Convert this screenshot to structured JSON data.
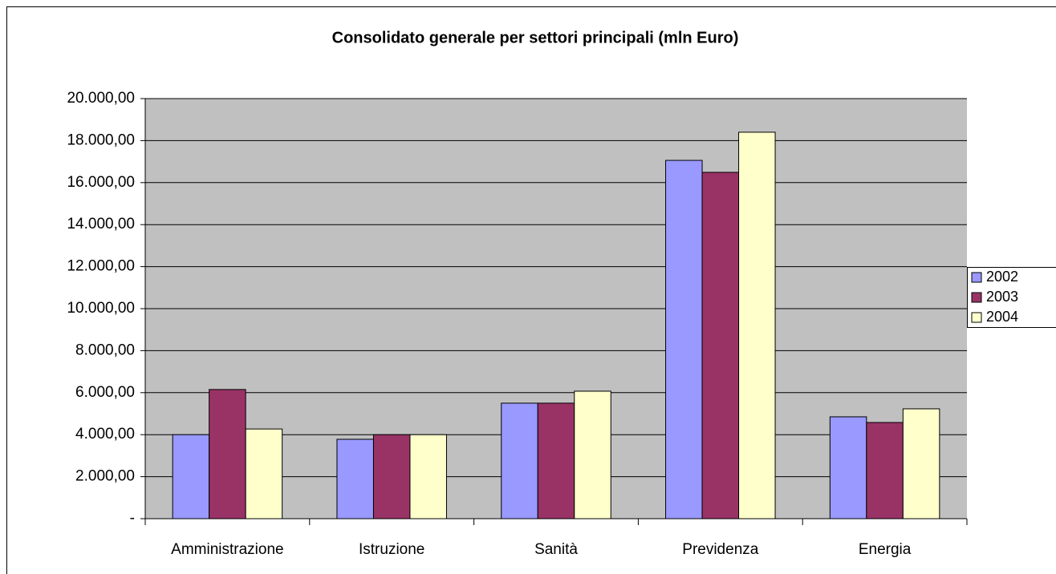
{
  "chart_data": {
    "type": "bar",
    "title": "Consolidato generale per settori principali (mln Euro)",
    "categories": [
      "Amministrazione",
      "Istruzione",
      "Sanità",
      "Previdenza",
      "Energia"
    ],
    "series": [
      {
        "name": "2002",
        "color": "#9999ff",
        "values": [
          4000,
          3780,
          5500,
          17060,
          4850
        ]
      },
      {
        "name": "2003",
        "color": "#993366",
        "values": [
          6150,
          4000,
          5500,
          16490,
          4580
        ]
      },
      {
        "name": "2004",
        "color": "#ffffcc",
        "values": [
          4270,
          4000,
          6070,
          18400,
          5230
        ]
      }
    ],
    "ylim": [
      0,
      20000
    ],
    "yticks": [
      {
        "value": 0,
        "label": "-"
      },
      {
        "value": 2000,
        "label": "2.000,00"
      },
      {
        "value": 4000,
        "label": "4.000,00"
      },
      {
        "value": 6000,
        "label": "6.000,00"
      },
      {
        "value": 8000,
        "label": "8.000,00"
      },
      {
        "value": 10000,
        "label": "10.000,00"
      },
      {
        "value": 12000,
        "label": "12.000,00"
      },
      {
        "value": 14000,
        "label": "14.000,00"
      },
      {
        "value": 16000,
        "label": "16.000,00"
      },
      {
        "value": 18000,
        "label": "18.000,00"
      },
      {
        "value": 20000,
        "label": "20.000,00"
      }
    ],
    "grid": true,
    "legend": "right"
  }
}
